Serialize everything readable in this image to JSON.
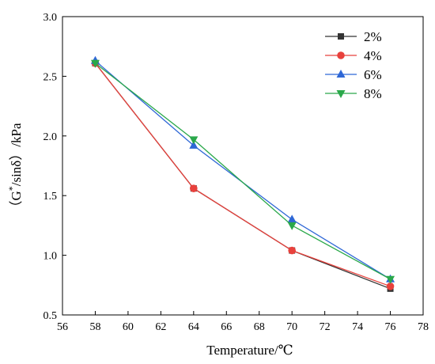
{
  "chart_data": {
    "type": "line",
    "title": "",
    "xlabel": "Temperature/℃",
    "ylabel": "（G*/sinδ）/kPa",
    "ylabel_parts": {
      "open": "（G",
      "sup": "*",
      "rest": "/sinδ）/kPa"
    },
    "xlim": [
      56,
      78
    ],
    "ylim": [
      0.5,
      3.0
    ],
    "xticks": [
      "56",
      "58",
      "60",
      "62",
      "64",
      "66",
      "68",
      "70",
      "72",
      "74",
      "76",
      "78"
    ],
    "yticks": [
      "0.5",
      "1.0",
      "1.5",
      "2.0",
      "2.5",
      "3.0"
    ],
    "x": [
      58,
      64,
      70,
      76
    ],
    "legend_position": "top-right",
    "series": [
      {
        "name": "2%",
        "color": "#333333",
        "marker": "square",
        "values": [
          2.61,
          1.56,
          1.04,
          0.72
        ]
      },
      {
        "name": "4%",
        "color": "#e8413c",
        "marker": "circle",
        "values": [
          2.61,
          1.56,
          1.04,
          0.74
        ]
      },
      {
        "name": "6%",
        "color": "#2e67d6",
        "marker": "triangle-up",
        "values": [
          2.63,
          1.92,
          1.3,
          0.8
        ]
      },
      {
        "name": "8%",
        "color": "#2aa84a",
        "marker": "triangle-down",
        "values": [
          2.61,
          1.97,
          1.25,
          0.8
        ]
      }
    ]
  }
}
